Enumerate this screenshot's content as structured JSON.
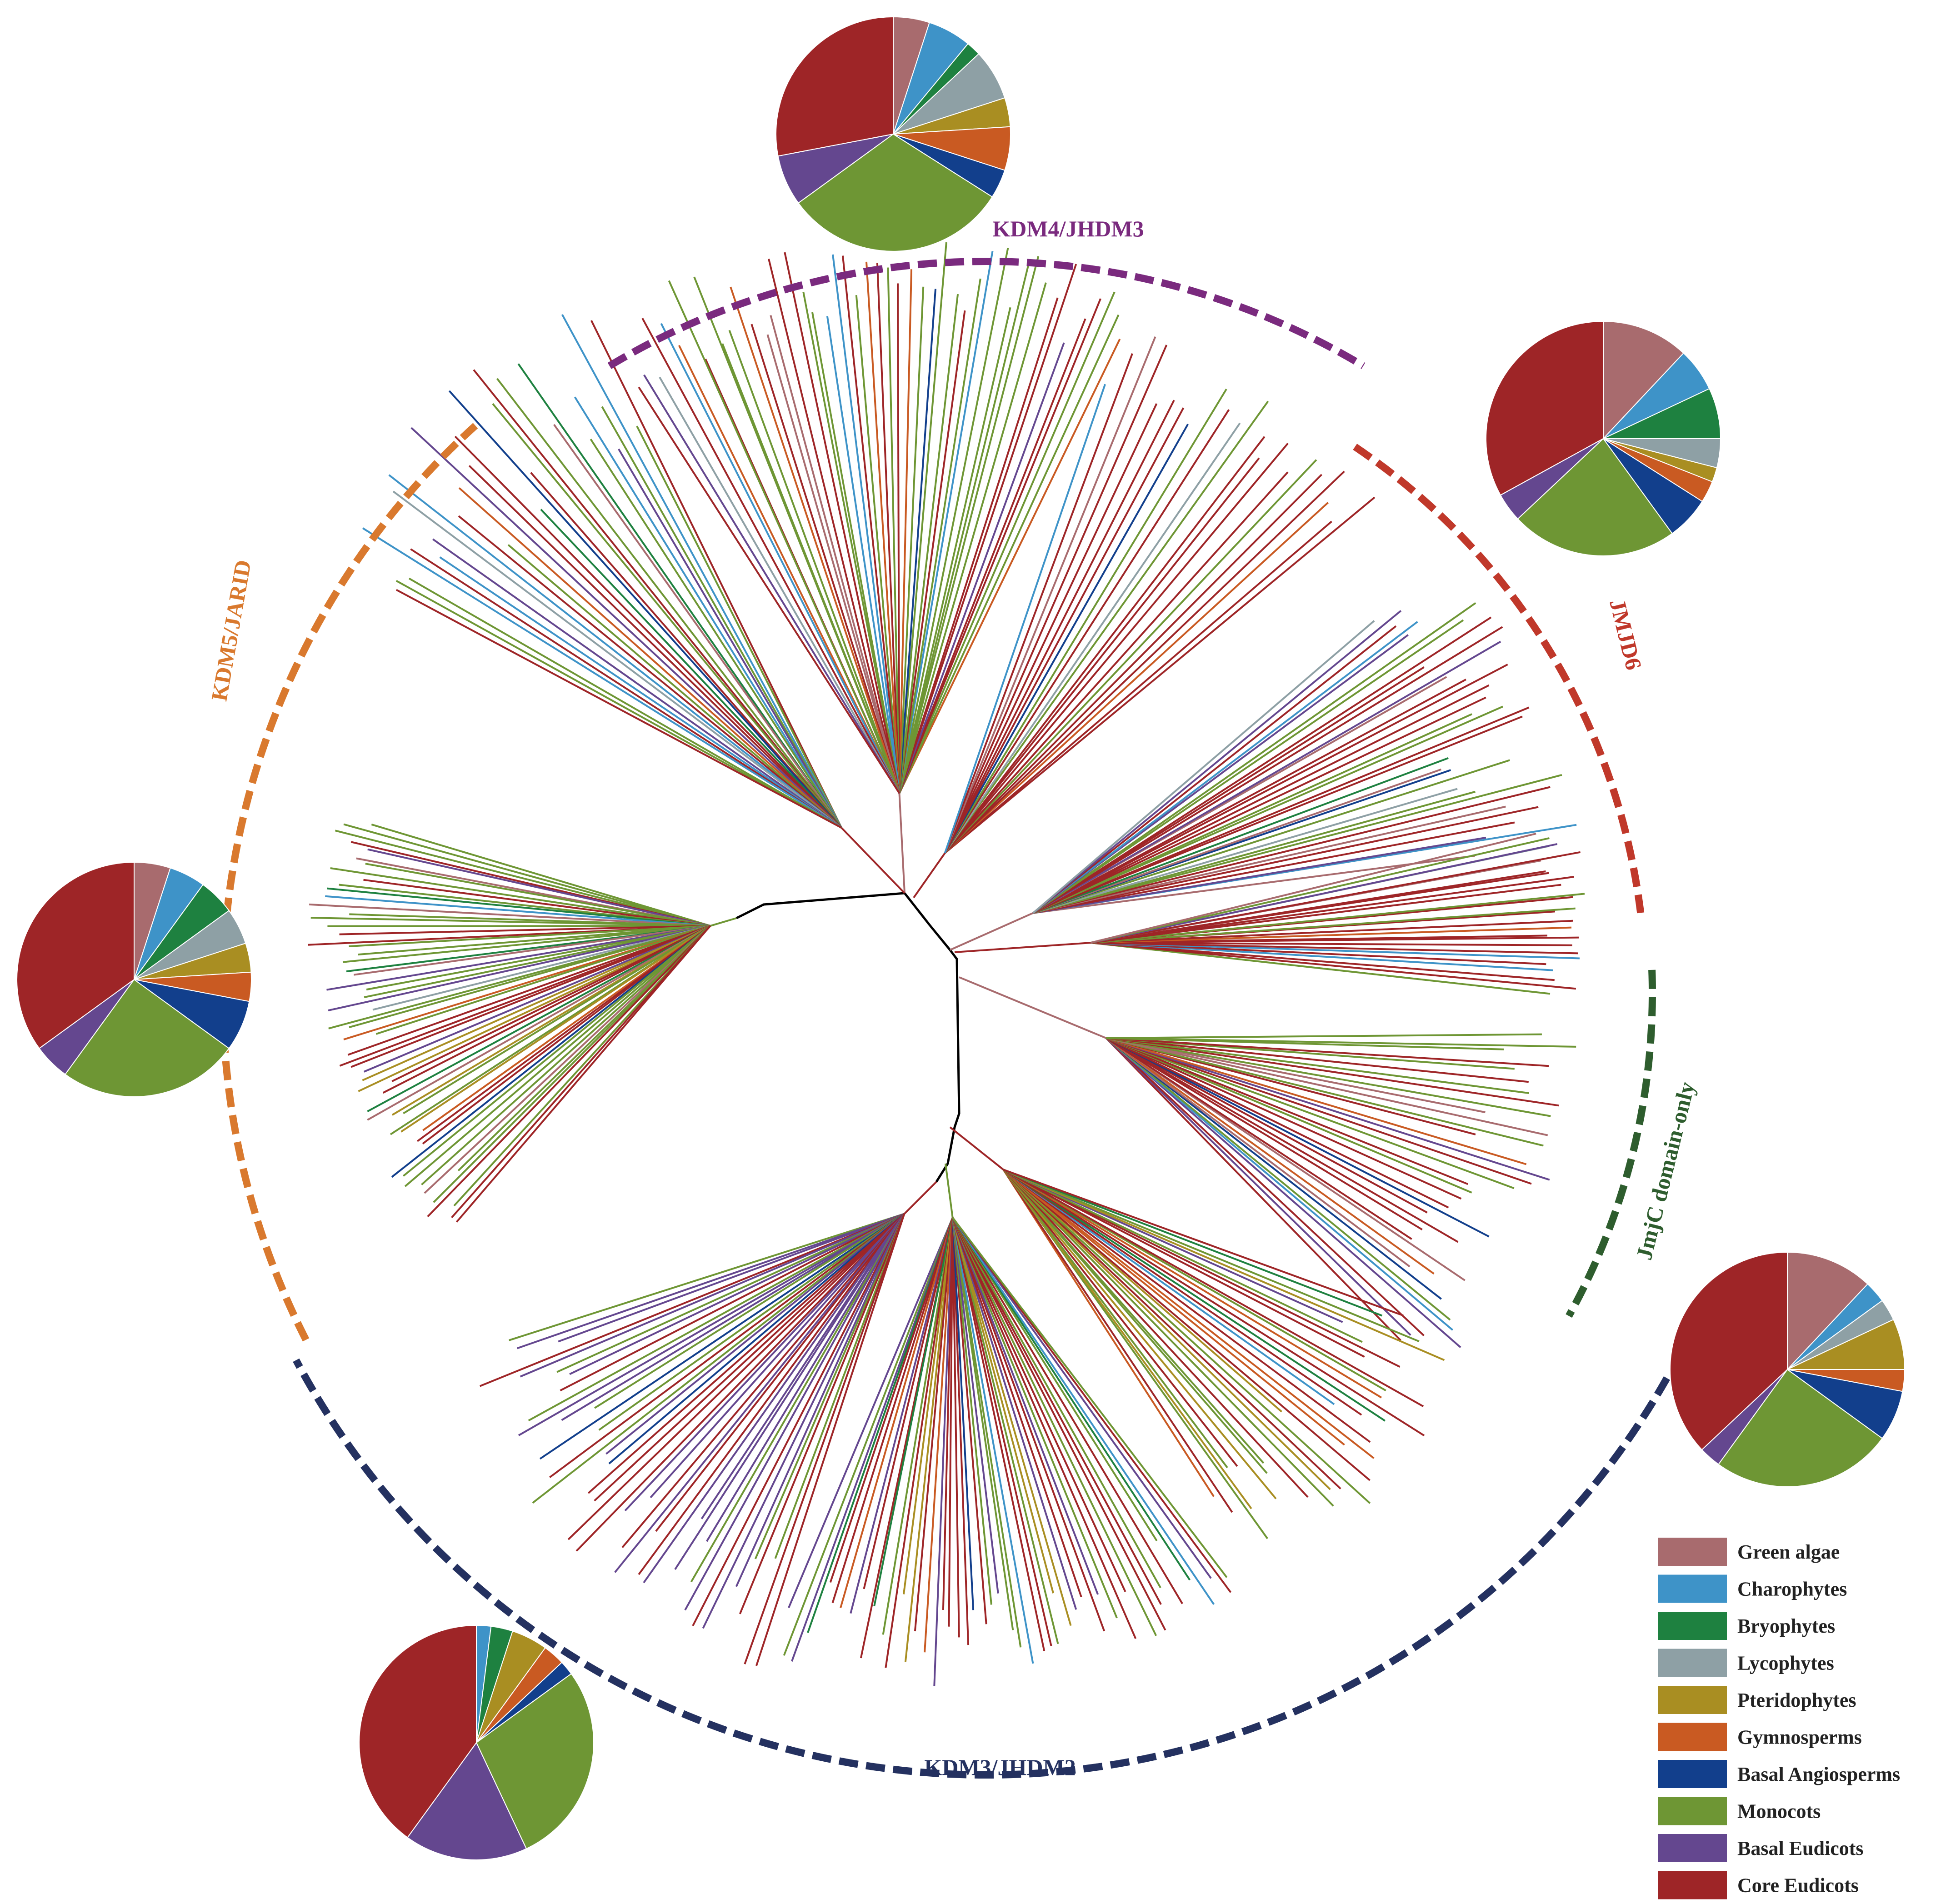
{
  "taxa": [
    {
      "key": "green_algae",
      "label": "Green algae",
      "color": "#A86B6E"
    },
    {
      "key": "charophytes",
      "label": "Charophytes",
      "color": "#3E93C8"
    },
    {
      "key": "bryophytes",
      "label": "Bryophytes",
      "color": "#1E8140"
    },
    {
      "key": "lycophytes",
      "label": "Lycophytes",
      "color": "#8EA0A5"
    },
    {
      "key": "pteridophytes",
      "label": "Pteridophytes",
      "color": "#A98E22"
    },
    {
      "key": "gymnosperms",
      "label": "Gymnosperms",
      "color": "#C95A22"
    },
    {
      "key": "basal_angiosperms",
      "label": "Basal Angiosperms",
      "color": "#123F8C"
    },
    {
      "key": "monocots",
      "label": "Monocots",
      "color": "#6E9634"
    },
    {
      "key": "basal_eudicots",
      "label": "Basal Eudicots",
      "color": "#64478F"
    },
    {
      "key": "core_eudicots",
      "label": "Core Eudicots",
      "color": "#9E2527"
    }
  ],
  "clades": [
    {
      "key": "kdm4",
      "label": "KDM4/JHDM3",
      "color": "#7A2A7E",
      "pie": [
        5,
        6,
        2,
        7,
        4,
        6,
        4,
        31,
        7,
        28
      ]
    },
    {
      "key": "jmjd6",
      "label": "JMJD6",
      "color": "#C0382A",
      "pie": [
        12,
        6,
        7,
        4,
        2,
        3,
        6,
        23,
        4,
        33
      ]
    },
    {
      "key": "jmjc",
      "label": "JmjC domain-only",
      "color": "#2E5D2E",
      "pie": [
        12,
        3,
        0,
        3,
        7,
        3,
        7,
        25,
        3,
        37
      ]
    },
    {
      "key": "kdm3",
      "label": "KDM3/JHDM2",
      "color": "#243160",
      "pie": [
        0,
        2,
        3,
        0,
        5,
        3,
        2,
        28,
        17,
        40
      ]
    },
    {
      "key": "kdm5",
      "label": "KDM5/JARID",
      "color": "#D9792E",
      "pie": [
        5,
        5,
        5,
        5,
        4,
        4,
        7,
        25,
        5,
        35
      ]
    }
  ],
  "legend_title": ""
}
